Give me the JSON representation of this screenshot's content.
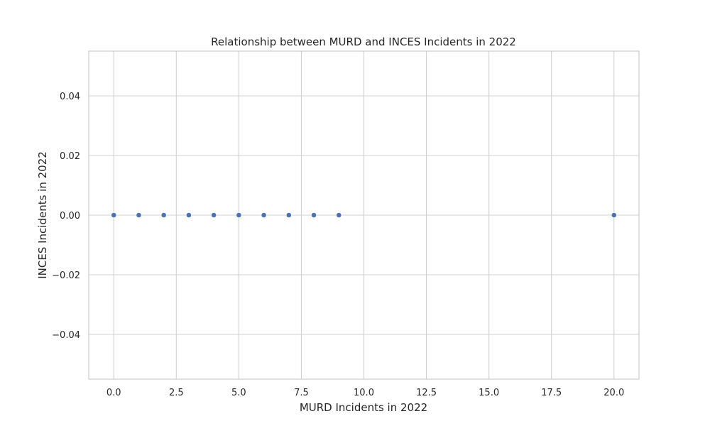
{
  "chart_data": {
    "type": "scatter",
    "title": "Relationship between MURD and INCES Incidents in 2022",
    "xlabel": "MURD Incidents in 2022",
    "ylabel": "INCES Incidents in 2022",
    "xlim": [
      -1.0,
      21.0
    ],
    "ylim": [
      -0.055,
      0.055
    ],
    "x_ticks": [
      0.0,
      2.5,
      5.0,
      7.5,
      10.0,
      12.5,
      15.0,
      17.5,
      20.0
    ],
    "x_tick_labels": [
      "0.0",
      "2.5",
      "5.0",
      "7.5",
      "10.0",
      "12.5",
      "15.0",
      "17.5",
      "20.0"
    ],
    "y_ticks": [
      -0.04,
      -0.02,
      0.0,
      0.02,
      0.04
    ],
    "y_tick_labels": [
      "−0.04",
      "−0.02",
      "0.00",
      "0.02",
      "0.04"
    ],
    "grid": true,
    "legend": "none",
    "point_color": "#4c72b0",
    "grid_color": "#d0d0d0",
    "points": [
      {
        "x": 0,
        "y": 0
      },
      {
        "x": 1,
        "y": 0
      },
      {
        "x": 2,
        "y": 0
      },
      {
        "x": 3,
        "y": 0
      },
      {
        "x": 4,
        "y": 0
      },
      {
        "x": 5,
        "y": 0
      },
      {
        "x": 6,
        "y": 0
      },
      {
        "x": 7,
        "y": 0
      },
      {
        "x": 8,
        "y": 0
      },
      {
        "x": 9,
        "y": 0
      },
      {
        "x": 20,
        "y": 0
      }
    ]
  }
}
